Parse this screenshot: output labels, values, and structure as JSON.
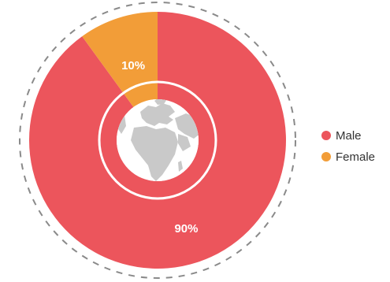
{
  "chart_data": {
    "type": "pie",
    "categories": [
      "Male",
      "Female"
    ],
    "values": [
      90,
      10
    ],
    "labels": [
      "90%",
      "10%"
    ],
    "colors": [
      "#ec555c",
      "#f29d38"
    ],
    "legend": {
      "placement": "right",
      "items": [
        {
          "name": "Male",
          "color": "#ec555c"
        },
        {
          "name": "Female",
          "color": "#f29d38"
        }
      ]
    },
    "center_icon": "globe-icon",
    "outer_ring": "dashed",
    "inner_ring": "solid-white"
  }
}
